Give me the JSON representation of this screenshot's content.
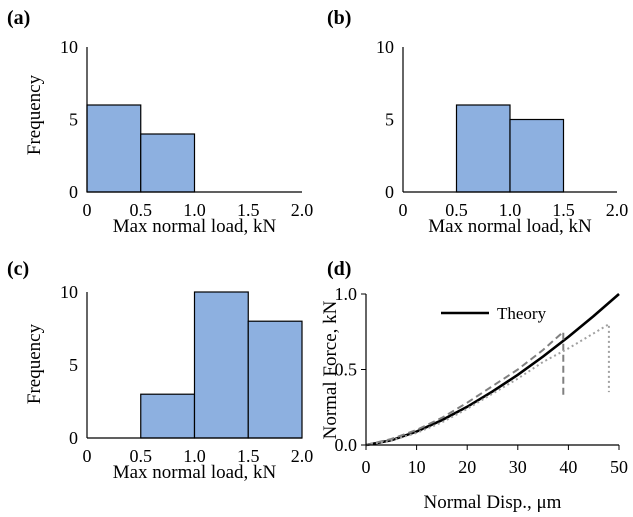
{
  "chart_data": [
    {
      "type": "bar",
      "panel_label": "(a)",
      "bins": [
        [
          0,
          0.5
        ],
        [
          0.5,
          1.0
        ],
        [
          1.0,
          1.5
        ],
        [
          1.5,
          2.0
        ]
      ],
      "values": [
        6,
        4,
        0,
        0
      ],
      "xlabel": "Max normal load, kN",
      "ylabel": "Frequency",
      "xlim": [
        0,
        2.0
      ],
      "ylim": [
        0,
        10
      ],
      "xticks": [
        "0",
        "0.5",
        "1.0",
        "1.5",
        "2.0"
      ],
      "yticks": [
        "0",
        "5",
        "10"
      ],
      "bar_color": "#8DB0E0",
      "grid": false
    },
    {
      "type": "bar",
      "panel_label": "(b)",
      "bins": [
        [
          0,
          0.5
        ],
        [
          0.5,
          1.0
        ],
        [
          1.0,
          1.5
        ],
        [
          1.5,
          2.0
        ]
      ],
      "values": [
        0,
        6,
        5,
        0
      ],
      "xlabel": "Max normal load, kN",
      "ylabel": "",
      "xlim": [
        0,
        2.0
      ],
      "ylim": [
        0,
        10
      ],
      "xticks": [
        "0",
        "0.5",
        "1.0",
        "1.5",
        "2.0"
      ],
      "yticks": [
        "0",
        "5",
        "10"
      ],
      "bar_color": "#8DB0E0",
      "grid": false
    },
    {
      "type": "bar",
      "panel_label": "(c)",
      "bins": [
        [
          0,
          0.5
        ],
        [
          0.5,
          1.0
        ],
        [
          1.0,
          1.5
        ],
        [
          1.5,
          2.0
        ]
      ],
      "values": [
        0,
        3,
        10,
        8
      ],
      "xlabel": "Max normal load, kN",
      "ylabel": "Frequency",
      "xlim": [
        0,
        2.0
      ],
      "ylim": [
        0,
        10
      ],
      "xticks": [
        "0",
        "0.5",
        "1.0",
        "1.5",
        "2.0"
      ],
      "yticks": [
        "0",
        "5",
        "10"
      ],
      "bar_color": "#8DB0E0",
      "grid": false
    },
    {
      "type": "line",
      "panel_label": "(d)",
      "xlabel": "Normal Disp., μm",
      "ylabel": "Normal Force, kN",
      "xlim": [
        0,
        50
      ],
      "ylim": [
        0,
        1.0
      ],
      "xticks": [
        "0",
        "10",
        "20",
        "30",
        "40",
        "50"
      ],
      "yticks": [
        "0.0",
        "0.5",
        "1.0"
      ],
      "legend": "top-left",
      "grid": false,
      "series": [
        {
          "name": "Theory",
          "style": "solid",
          "color": "#000000",
          "x": [
            0,
            5,
            10,
            15,
            20,
            25,
            30,
            35,
            40,
            45,
            50
          ],
          "y": [
            0,
            0.031,
            0.089,
            0.164,
            0.253,
            0.354,
            0.465,
            0.586,
            0.716,
            0.854,
            1.0
          ]
        },
        {
          "style": "dashed",
          "color": "#808080",
          "x": [
            0,
            5,
            10,
            15,
            20,
            25,
            30,
            35,
            39,
            39,
            39
          ],
          "y": [
            0,
            0.04,
            0.1,
            0.18,
            0.28,
            0.39,
            0.5,
            0.63,
            0.75,
            0.75,
            0.33
          ]
        },
        {
          "style": "dotted",
          "color": "#a0a0a0",
          "x": [
            0,
            5,
            10,
            15,
            20,
            25,
            30,
            35,
            40,
            45,
            48,
            48
          ],
          "y": [
            0,
            0.03,
            0.08,
            0.15,
            0.24,
            0.34,
            0.44,
            0.55,
            0.64,
            0.74,
            0.8,
            0.35
          ]
        }
      ]
    }
  ]
}
